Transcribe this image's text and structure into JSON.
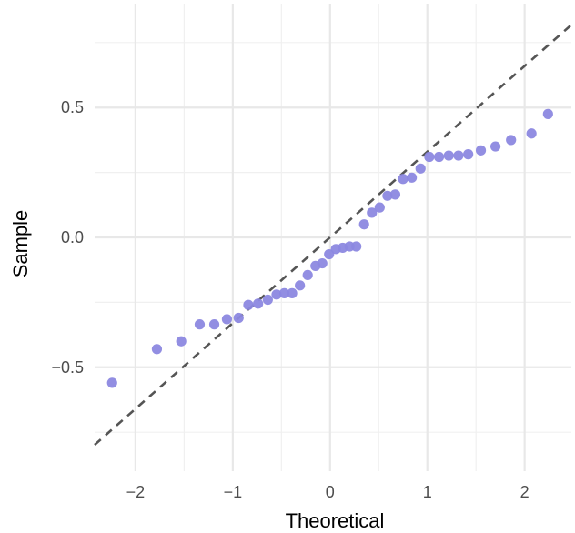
{
  "chart_data": {
    "type": "scatter",
    "title": "",
    "xlabel": "Theoretical",
    "ylabel": "Sample",
    "xlim": [
      -2.42,
      2.48
    ],
    "ylim": [
      -0.9,
      0.9
    ],
    "x_ticks": [
      -2,
      -1,
      0,
      1,
      2
    ],
    "x_tick_labels": [
      "−2",
      "−1",
      "0",
      "1",
      "2"
    ],
    "y_ticks": [
      -0.5,
      0.0,
      0.5
    ],
    "y_tick_labels": [
      "−0.5",
      "0.0",
      "0.5"
    ],
    "grid": true,
    "point_color": "#8c88e0",
    "reference_line": {
      "intercept": 0.0,
      "slope": 0.33,
      "style": "dashed",
      "color": "#555555"
    },
    "points": [
      {
        "x": -2.24,
        "y": -0.56
      },
      {
        "x": -1.78,
        "y": -0.43
      },
      {
        "x": -1.53,
        "y": -0.4
      },
      {
        "x": -1.34,
        "y": -0.335
      },
      {
        "x": -1.19,
        "y": -0.335
      },
      {
        "x": -1.06,
        "y": -0.315
      },
      {
        "x": -0.94,
        "y": -0.31
      },
      {
        "x": -0.84,
        "y": -0.26
      },
      {
        "x": -0.74,
        "y": -0.255
      },
      {
        "x": -0.64,
        "y": -0.24
      },
      {
        "x": -0.55,
        "y": -0.22
      },
      {
        "x": -0.47,
        "y": -0.215
      },
      {
        "x": -0.39,
        "y": -0.215
      },
      {
        "x": -0.31,
        "y": -0.185
      },
      {
        "x": -0.23,
        "y": -0.145
      },
      {
        "x": -0.15,
        "y": -0.11
      },
      {
        "x": -0.08,
        "y": -0.1
      },
      {
        "x": -0.01,
        "y": -0.065
      },
      {
        "x": 0.06,
        "y": -0.045
      },
      {
        "x": 0.13,
        "y": -0.04
      },
      {
        "x": 0.2,
        "y": -0.035
      },
      {
        "x": 0.27,
        "y": -0.035
      },
      {
        "x": 0.35,
        "y": 0.05
      },
      {
        "x": 0.43,
        "y": 0.095
      },
      {
        "x": 0.51,
        "y": 0.115
      },
      {
        "x": 0.59,
        "y": 0.16
      },
      {
        "x": 0.67,
        "y": 0.165
      },
      {
        "x": 0.75,
        "y": 0.225
      },
      {
        "x": 0.84,
        "y": 0.23
      },
      {
        "x": 0.93,
        "y": 0.265
      },
      {
        "x": 1.02,
        "y": 0.31
      },
      {
        "x": 1.12,
        "y": 0.31
      },
      {
        "x": 1.22,
        "y": 0.315
      },
      {
        "x": 1.32,
        "y": 0.315
      },
      {
        "x": 1.42,
        "y": 0.32
      },
      {
        "x": 1.55,
        "y": 0.335
      },
      {
        "x": 1.7,
        "y": 0.35
      },
      {
        "x": 1.86,
        "y": 0.375
      },
      {
        "x": 2.07,
        "y": 0.4
      },
      {
        "x": 2.24,
        "y": 0.475
      }
    ]
  }
}
